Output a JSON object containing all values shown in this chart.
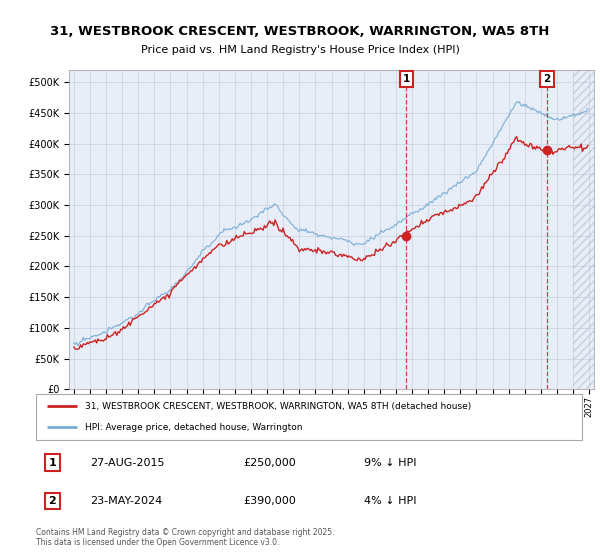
{
  "title_line1": "31, WESTBROOK CRESCENT, WESTBROOK, WARRINGTON, WA5 8TH",
  "title_line2": "Price paid vs. HM Land Registry's House Price Index (HPI)",
  "ylim": [
    0,
    520000
  ],
  "yticks": [
    0,
    50000,
    100000,
    150000,
    200000,
    250000,
    300000,
    350000,
    400000,
    450000,
    500000
  ],
  "ytick_labels": [
    "£0",
    "£50K",
    "£100K",
    "£150K",
    "£200K",
    "£250K",
    "£300K",
    "£350K",
    "£400K",
    "£450K",
    "£500K"
  ],
  "hpi_color": "#7aadd4",
  "price_color": "#cc2222",
  "background_color": "#e8eef8",
  "grid_color": "#c8d0e0",
  "hatch_color": "#d0d8e8",
  "marker1_x": 2015.65,
  "marker1_y": 250000,
  "marker1_label": "1",
  "marker1_date": "27-AUG-2015",
  "marker1_price": "£250,000",
  "marker1_hpi": "9% ↓ HPI",
  "marker2_x": 2024.39,
  "marker2_y": 390000,
  "marker2_label": "2",
  "marker2_date": "23-MAY-2024",
  "marker2_price": "£390,000",
  "marker2_hpi": "4% ↓ HPI",
  "xmin": 1994.7,
  "xmax": 2027.3,
  "hatch_start": 2026.0,
  "legend_label1": "31, WESTBROOK CRESCENT, WESTBROOK, WARRINGTON, WA5 8TH (detached house)",
  "legend_label2": "HPI: Average price, detached house, Warrington",
  "footnote": "Contains HM Land Registry data © Crown copyright and database right 2025.\nThis data is licensed under the Open Government Licence v3.0."
}
